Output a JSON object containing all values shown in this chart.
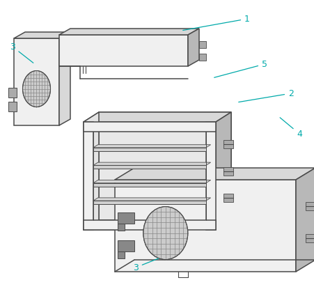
{
  "bg_color": "#ffffff",
  "line_color": "#4a4a4a",
  "line_width": 1.1,
  "label_color": "#00aaaa",
  "label_fontsize": 9,
  "face_light": "#f0f0f0",
  "face_mid": "#d8d8d8",
  "face_dark": "#b8b8b8",
  "face_inner": "#e4e4e4"
}
